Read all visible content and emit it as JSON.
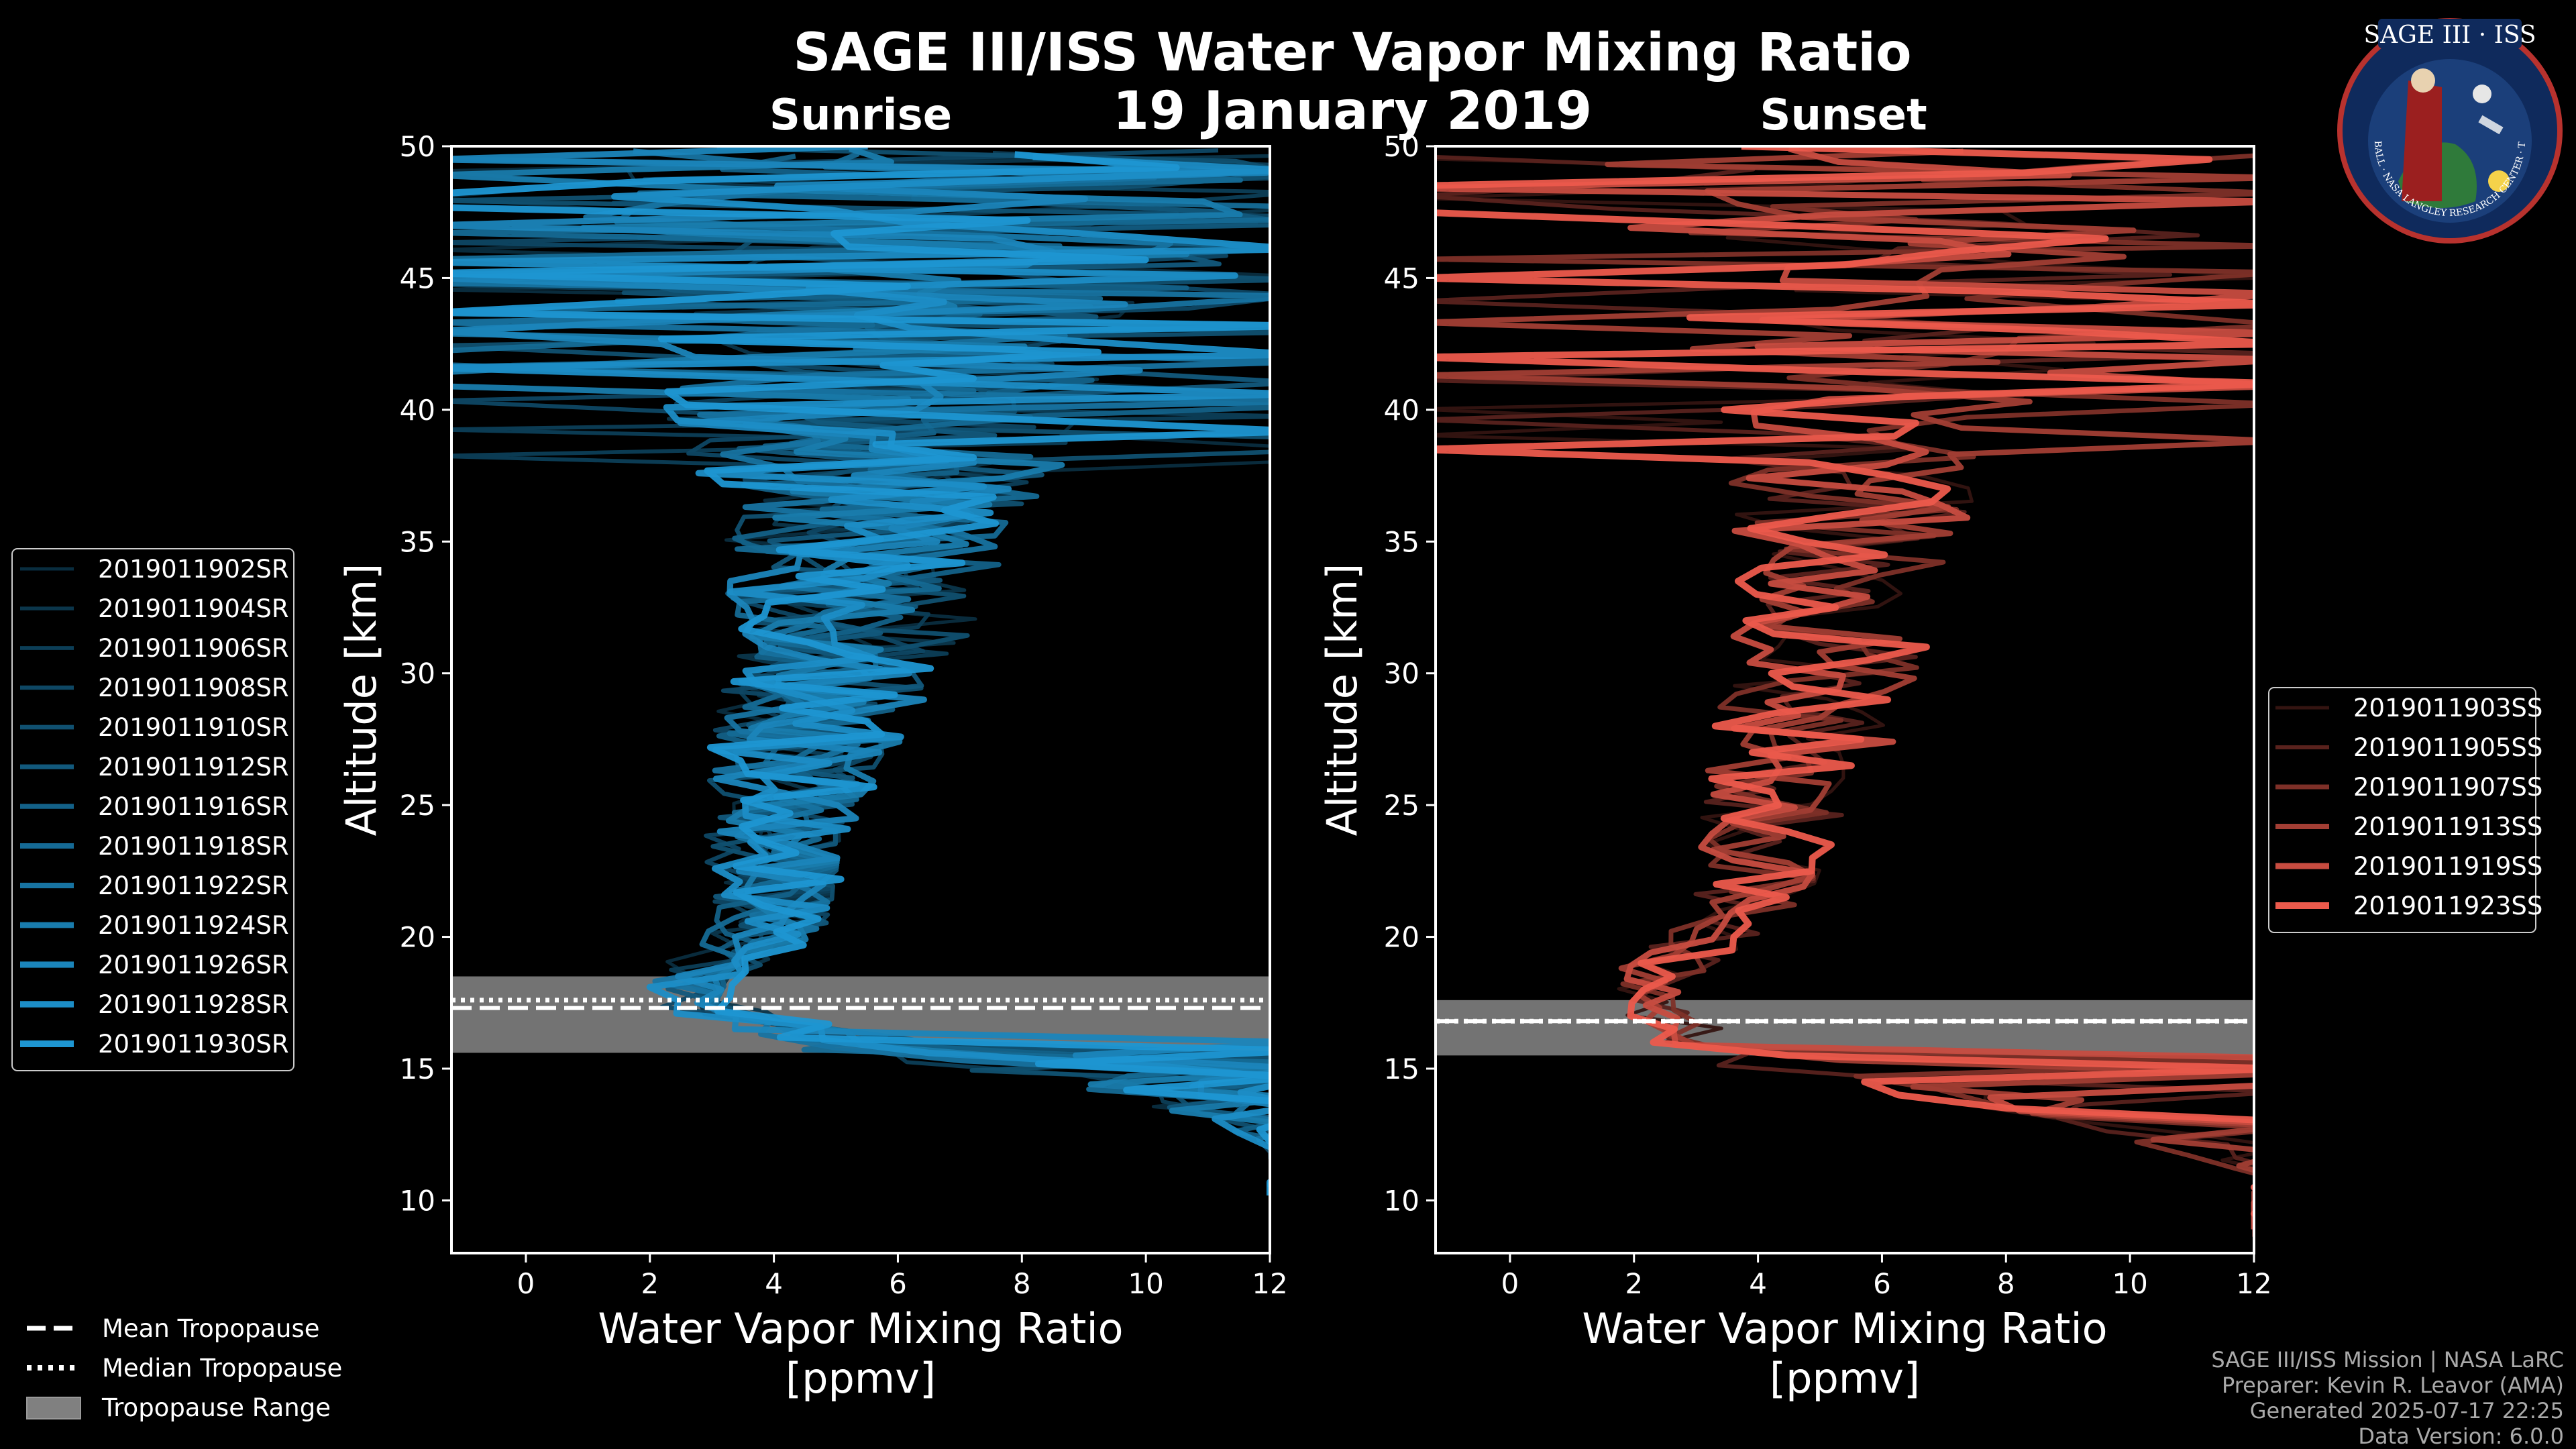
{
  "title": "SAGE III/ISS Water Vapor Mixing Ratio",
  "date_label": "19 January 2019",
  "credits": [
    "SAGE III/ISS Mission | NASA LaRC",
    "Preparer: Kevin R. Leavor (AMA)",
    "Generated 2025-07-17 22:25",
    "Data Version: 6.0.0"
  ],
  "logo": {
    "title": "SAGE III · ISS",
    "ring_text": "BALL · NASA LANGLEY RESEARCH CENTER · TAS-I · ESA"
  },
  "tropopause_legend": [
    {
      "label": "Mean Tropopause",
      "style": "dashed"
    },
    {
      "label": "Median Tropopause",
      "style": "dotted"
    },
    {
      "label": "Tropopause Range",
      "style": "patch"
    }
  ],
  "colors": {
    "sunrise_base": "#1e96d2",
    "sunset_base": "#ec5a4c",
    "tropopause_band": "#808080"
  },
  "chart_data": [
    {
      "type": "line",
      "panel": "Sunrise",
      "subtitle": "Sunrise",
      "xlabel": "Water Vapor Mixing Ratio",
      "xlabel_units": "[ppmv]",
      "ylabel": "Altitude [km]",
      "xlim": [
        -1.2,
        12
      ],
      "ylim": [
        8,
        50
      ],
      "xticks": [
        0,
        2,
        4,
        6,
        8,
        10,
        12
      ],
      "yticks": [
        10,
        15,
        20,
        25,
        30,
        35,
        40,
        45,
        50
      ],
      "legend_position": "left-outside",
      "series": [
        {
          "name": "2019011902SR"
        },
        {
          "name": "2019011904SR"
        },
        {
          "name": "2019011906SR"
        },
        {
          "name": "2019011908SR"
        },
        {
          "name": "2019011910SR"
        },
        {
          "name": "2019011912SR"
        },
        {
          "name": "2019011916SR"
        },
        {
          "name": "2019011918SR"
        },
        {
          "name": "2019011922SR"
        },
        {
          "name": "2019011924SR"
        },
        {
          "name": "2019011926SR"
        },
        {
          "name": "2019011928SR"
        },
        {
          "name": "2019011930SR"
        }
      ],
      "profile_shape": {
        "altitude": [
          10,
          12,
          14,
          15,
          16,
          17,
          17.5,
          18,
          19,
          20,
          22,
          24,
          26,
          28,
          30,
          32,
          34,
          36,
          38,
          40,
          42,
          44,
          46,
          48,
          50
        ],
        "mean": [
          12,
          12,
          11,
          9,
          5,
          3.2,
          2.6,
          2.5,
          3.0,
          3.8,
          4.0,
          4.1,
          4.3,
          4.6,
          5.0,
          5.3,
          5.4,
          5.6,
          5.7,
          5.8,
          6.0,
          6.2,
          6.4,
          6.6,
          7.0
        ],
        "spread": [
          0,
          0,
          1.5,
          2,
          2,
          1,
          0.8,
          0.7,
          0.9,
          1.0,
          1.1,
          1.2,
          1.4,
          1.6,
          1.8,
          2.0,
          2.2,
          2.5,
          3.0,
          3.6,
          4.2,
          4.8,
          5.5,
          6.0,
          6.5
        ]
      },
      "tropopause": {
        "mean": 17.3,
        "median": 17.6,
        "range": [
          15.6,
          18.5
        ]
      }
    },
    {
      "type": "line",
      "panel": "Sunset",
      "subtitle": "Sunset",
      "xlabel": "Water Vapor Mixing Ratio",
      "xlabel_units": "[ppmv]",
      "ylabel": "Altitude [km]",
      "xlim": [
        -1.2,
        12
      ],
      "ylim": [
        8,
        50
      ],
      "xticks": [
        0,
        2,
        4,
        6,
        8,
        10,
        12
      ],
      "yticks": [
        10,
        15,
        20,
        25,
        30,
        35,
        40,
        45,
        50
      ],
      "legend_position": "right-outside",
      "series": [
        {
          "name": "2019011903SS"
        },
        {
          "name": "2019011905SS"
        },
        {
          "name": "2019011907SS"
        },
        {
          "name": "2019011913SS"
        },
        {
          "name": "2019011919SS"
        },
        {
          "name": "2019011923SS"
        }
      ],
      "profile_shape": {
        "altitude": [
          8.5,
          11,
          13,
          15,
          16,
          17,
          18,
          19,
          20,
          22,
          24,
          26,
          28,
          30,
          32,
          34,
          36,
          38,
          40,
          42,
          44,
          46,
          48,
          50
        ],
        "mean": [
          12,
          12,
          10,
          4.5,
          3.0,
          2.3,
          2.2,
          2.6,
          3.4,
          4.0,
          4.2,
          4.5,
          4.8,
          5.1,
          5.3,
          5.4,
          5.5,
          5.6,
          5.8,
          6.0,
          6.3,
          6.8,
          7.0,
          7.2
        ],
        "spread": [
          0,
          0,
          1.5,
          1.5,
          1,
          0.6,
          0.6,
          0.8,
          0.9,
          1.0,
          1.2,
          1.4,
          1.5,
          1.6,
          1.7,
          1.8,
          1.9,
          2.2,
          2.6,
          3.2,
          4.0,
          5.0,
          6.0,
          6.5
        ]
      },
      "tropopause": {
        "mean": 16.8,
        "median": 16.8,
        "range": [
          15.5,
          17.6
        ]
      }
    }
  ]
}
